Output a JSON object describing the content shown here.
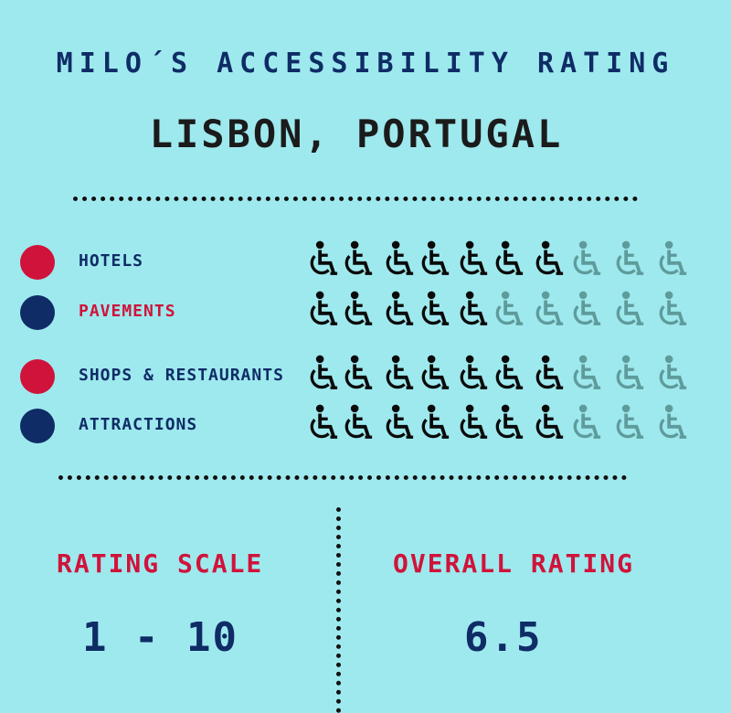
{
  "header": {
    "title": "MILO´S ACCESSIBILITY RATING",
    "location": "LISBON, PORTUGAL"
  },
  "colors": {
    "background": "#9ee9ee",
    "red": "#d0133a",
    "navy": "#0f2c66",
    "icon_filled": "#0a0a0a",
    "icon_empty": "#5e9b9b"
  },
  "icon": "wheelchair-icon",
  "max_rating": 10,
  "categories": [
    {
      "label": "HOTELS",
      "rating": 7,
      "dot_color": "#d0133a",
      "label_color": "#0f2c66"
    },
    {
      "label": "PAVEMENTS",
      "rating": 5,
      "dot_color": "#0f2c66",
      "label_color": "#d0133a"
    },
    {
      "label": "SHOPS & RESTAURANTS",
      "rating": 7,
      "dot_color": "#d0133a",
      "label_color": "#0f2c66"
    },
    {
      "label": "ATTRACTIONS",
      "rating": 7,
      "dot_color": "#0f2c66",
      "label_color": "#0f2c66"
    }
  ],
  "scale": {
    "heading": "RATING SCALE",
    "value": "1 - 10"
  },
  "overall": {
    "heading": "OVERALL RATING",
    "value": "6.5"
  }
}
